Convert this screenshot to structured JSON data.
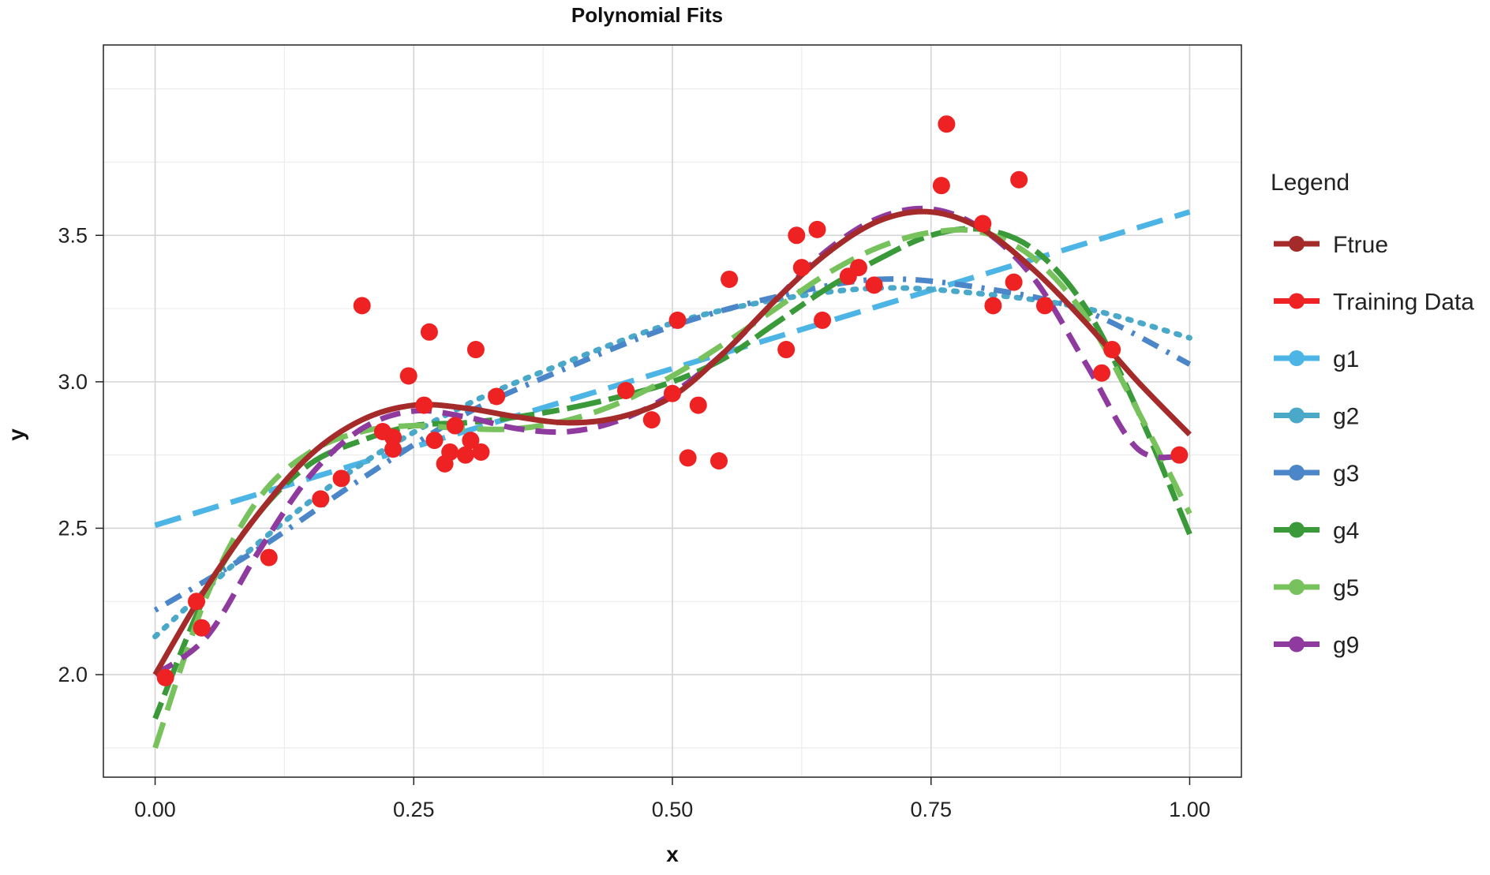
{
  "chart_data": {
    "type": "scatter",
    "title": "Polynomial Fits",
    "xlabel": "x",
    "ylabel": "y",
    "xlim": [
      -0.05,
      1.05
    ],
    "ylim": [
      1.65,
      4.15
    ],
    "x_ticks": [
      0.0,
      0.25,
      0.5,
      0.75,
      1.0
    ],
    "x_tick_labels": [
      "0.00",
      "0.25",
      "0.50",
      "0.75",
      "1.00"
    ],
    "y_ticks": [
      2.0,
      2.5,
      3.0,
      3.5
    ],
    "y_tick_labels": [
      "2.0",
      "2.5",
      "3.0",
      "3.5"
    ],
    "grid": true,
    "legend_title": "Legend",
    "legend_position": "right",
    "series": [
      {
        "name": "Ftrue",
        "kind": "line",
        "color": "#a52a2a",
        "dash": "solid",
        "x": [
          0.0,
          0.05,
          0.1,
          0.15,
          0.2,
          0.25,
          0.3,
          0.35,
          0.4,
          0.45,
          0.5,
          0.55,
          0.6,
          0.65,
          0.7,
          0.75,
          0.8,
          0.85,
          0.9,
          0.95,
          1.0
        ],
        "y": [
          2.0,
          2.3,
          2.55,
          2.75,
          2.87,
          2.92,
          2.91,
          2.88,
          2.86,
          2.88,
          2.95,
          3.1,
          3.28,
          3.44,
          3.55,
          3.58,
          3.52,
          3.38,
          3.2,
          3.0,
          2.82
        ]
      },
      {
        "name": "Training Data",
        "kind": "points",
        "color": "#ee2222",
        "x": [
          0.01,
          0.045,
          0.04,
          0.11,
          0.16,
          0.18,
          0.2,
          0.22,
          0.23,
          0.23,
          0.245,
          0.26,
          0.265,
          0.27,
          0.28,
          0.285,
          0.29,
          0.3,
          0.305,
          0.31,
          0.315,
          0.33,
          0.455,
          0.48,
          0.5,
          0.505,
          0.515,
          0.525,
          0.545,
          0.555,
          0.61,
          0.62,
          0.625,
          0.64,
          0.645,
          0.67,
          0.68,
          0.695,
          0.76,
          0.765,
          0.8,
          0.81,
          0.83,
          0.835,
          0.86,
          0.915,
          0.925,
          0.99
        ],
        "y": [
          1.99,
          2.16,
          2.25,
          2.4,
          2.6,
          2.67,
          3.26,
          2.83,
          2.77,
          2.81,
          3.02,
          2.92,
          3.17,
          2.8,
          2.72,
          2.76,
          2.85,
          2.75,
          2.8,
          3.11,
          2.76,
          2.95,
          2.97,
          2.87,
          2.96,
          3.21,
          2.74,
          2.92,
          2.73,
          3.35,
          3.11,
          3.5,
          3.39,
          3.52,
          3.21,
          3.36,
          3.39,
          3.33,
          3.67,
          3.88,
          3.54,
          3.26,
          3.34,
          3.69,
          3.26,
          3.03,
          3.11,
          2.75
        ]
      },
      {
        "name": "g1",
        "kind": "line",
        "color": "#4db5e6",
        "dash": "longdash",
        "x": [
          0.0,
          1.0
        ],
        "y": [
          2.51,
          3.58
        ]
      },
      {
        "name": "g2",
        "kind": "line",
        "color": "#4aa8c9",
        "dash": "dotted",
        "x": [
          0.0,
          0.1,
          0.2,
          0.3,
          0.4,
          0.5,
          0.6,
          0.7,
          0.8,
          0.9,
          1.0
        ],
        "y": [
          2.13,
          2.45,
          2.72,
          2.92,
          3.07,
          3.2,
          3.28,
          3.32,
          3.3,
          3.25,
          3.15
        ]
      },
      {
        "name": "g3",
        "kind": "line",
        "color": "#4a86c8",
        "dash": "dotdash",
        "x": [
          0.0,
          0.1,
          0.2,
          0.3,
          0.4,
          0.5,
          0.6,
          0.7,
          0.8,
          0.9,
          1.0
        ],
        "y": [
          2.22,
          2.43,
          2.67,
          2.89,
          3.05,
          3.19,
          3.29,
          3.35,
          3.32,
          3.24,
          3.06
        ]
      },
      {
        "name": "g4",
        "kind": "line",
        "color": "#3a9a3a",
        "dash": "twodash",
        "x": [
          0.0,
          0.05,
          0.1,
          0.15,
          0.2,
          0.25,
          0.3,
          0.35,
          0.4,
          0.45,
          0.5,
          0.55,
          0.6,
          0.65,
          0.7,
          0.75,
          0.8,
          0.85,
          0.9,
          0.95,
          1.0
        ],
        "y": [
          1.85,
          2.28,
          2.55,
          2.72,
          2.8,
          2.85,
          2.86,
          2.88,
          2.91,
          2.95,
          3.0,
          3.08,
          3.2,
          3.32,
          3.42,
          3.5,
          3.52,
          3.45,
          3.25,
          2.9,
          2.48
        ]
      },
      {
        "name": "g5",
        "kind": "line",
        "color": "#77c25c",
        "dash": "longdash",
        "x": [
          0.0,
          0.05,
          0.1,
          0.15,
          0.2,
          0.25,
          0.3,
          0.35,
          0.4,
          0.45,
          0.5,
          0.55,
          0.6,
          0.65,
          0.7,
          0.75,
          0.8,
          0.85,
          0.9,
          0.95,
          1.0
        ],
        "y": [
          1.75,
          2.27,
          2.6,
          2.76,
          2.83,
          2.85,
          2.84,
          2.84,
          2.87,
          2.93,
          3.02,
          3.13,
          3.25,
          3.37,
          3.46,
          3.51,
          3.51,
          3.42,
          3.22,
          2.9,
          2.55
        ]
      },
      {
        "name": "g9",
        "kind": "line",
        "color": "#8e3a9e",
        "dash": "dashed",
        "x": [
          0.0,
          0.05,
          0.1,
          0.15,
          0.2,
          0.25,
          0.3,
          0.35,
          0.4,
          0.45,
          0.5,
          0.55,
          0.6,
          0.65,
          0.7,
          0.75,
          0.8,
          0.85,
          0.9,
          0.95,
          1.0
        ],
        "y": [
          2.0,
          2.13,
          2.42,
          2.68,
          2.84,
          2.9,
          2.88,
          2.84,
          2.83,
          2.87,
          2.96,
          3.1,
          3.28,
          3.45,
          3.56,
          3.59,
          3.52,
          3.35,
          3.06,
          2.77,
          2.75
        ]
      }
    ]
  }
}
